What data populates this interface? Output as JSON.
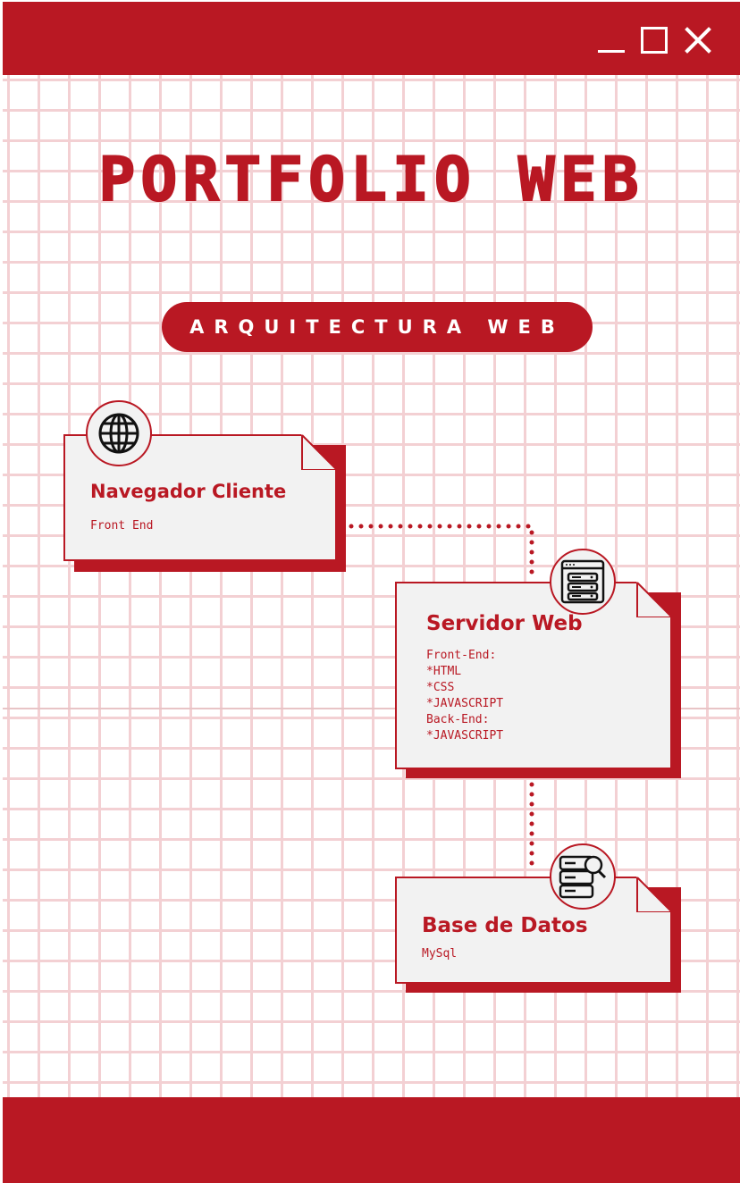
{
  "window_controls": {
    "minimize": "minimize",
    "maximize": "maximize",
    "close": "close"
  },
  "title": "PORTFOLIO WEB",
  "subtitle": "ARQUITECTURA WEB",
  "nodes": {
    "client": {
      "title": "Navegador Cliente",
      "detail": "Front End",
      "icon": "globe-icon"
    },
    "server": {
      "title": "Servidor Web",
      "detail": "Front-End:\n*HTML\n*CSS\n*JAVASCRIPT\nBack-End:\n*JAVASCRIPT",
      "icon": "server-window-icon"
    },
    "database": {
      "title": "Base de Datos",
      "detail": "MySql",
      "icon": "database-search-icon"
    }
  },
  "colors": {
    "accent": "#b91823",
    "card": "#f2f2f2",
    "grid": "#f3d0d3"
  }
}
